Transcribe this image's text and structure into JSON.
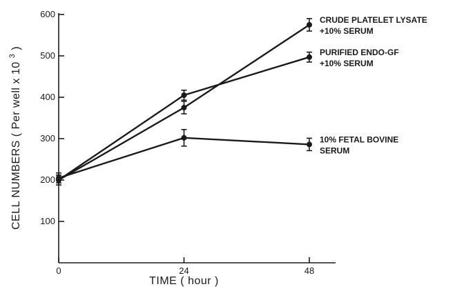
{
  "chart_data": {
    "type": "line",
    "xlabel": "TIME ( hour )",
    "ylabel_main": "CELL NUMBERS ( Per well x 10",
    "ylabel_sup": "3",
    "ylabel_close": ")",
    "x_ticks": [
      0,
      24,
      48
    ],
    "x_tick_labels": [
      "0",
      "24",
      "48"
    ],
    "y_ticks": [
      100,
      200,
      300,
      400,
      500,
      600
    ],
    "y_tick_labels": [
      "100",
      "200",
      "300",
      "400",
      "500",
      "600"
    ],
    "xlim": [
      0,
      48
    ],
    "ylim": [
      0,
      600
    ],
    "series": [
      {
        "name_lines": [
          "CRUDE PLATELET LYSATE",
          "+10% SERUM"
        ],
        "x": [
          0,
          24,
          48
        ],
        "values": [
          200,
          375,
          575
        ],
        "errors": [
          12,
          15,
          15
        ]
      },
      {
        "name_lines": [
          "PURIFIED ENDO-GF",
          "+10% SERUM"
        ],
        "x": [
          0,
          24,
          48
        ],
        "values": [
          200,
          405,
          497
        ],
        "errors": [
          12,
          12,
          12
        ]
      },
      {
        "name_lines": [
          "10% FETAL BOVINE",
          "SERUM"
        ],
        "x": [
          0,
          24,
          48
        ],
        "values": [
          205,
          302,
          286
        ],
        "errors": [
          12,
          20,
          15
        ]
      }
    ]
  }
}
